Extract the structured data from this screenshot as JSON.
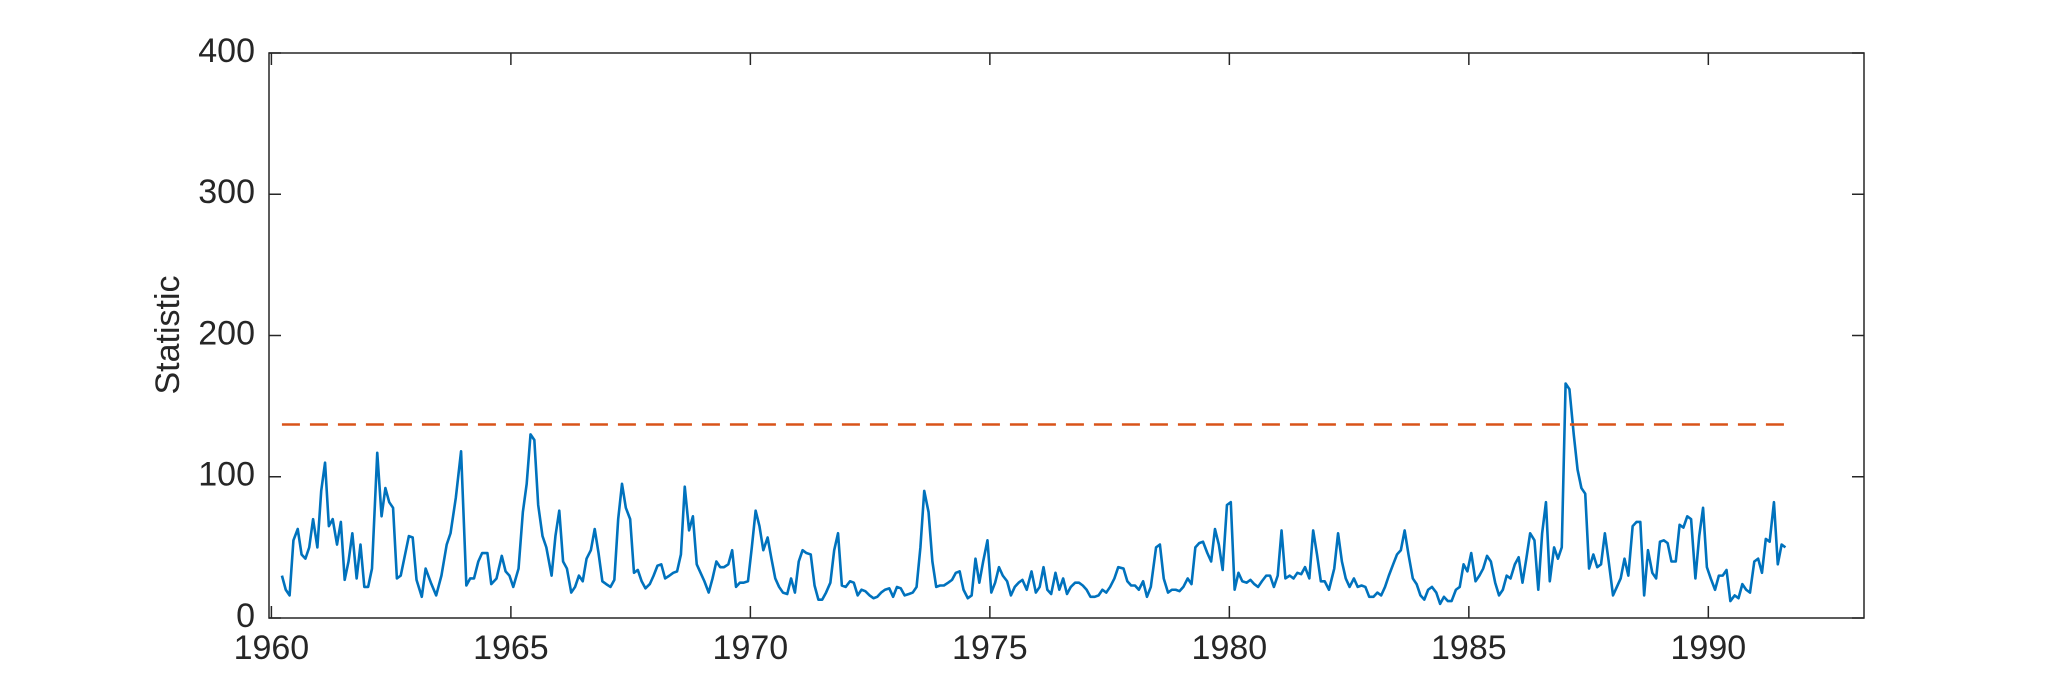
{
  "chart_data": {
    "type": "line",
    "ylabel": "Statistic",
    "xlim": [
      1959.95,
      1993.25
    ],
    "xticks": [
      1960,
      1965,
      1970,
      1975,
      1980,
      1985,
      1990
    ],
    "ylim": [
      0,
      400
    ],
    "yticks": [
      0,
      100,
      200,
      300,
      400
    ],
    "grid": false,
    "series": [
      {
        "color": "#0072bd",
        "x": [
          1960.22,
          1960.3,
          1960.38,
          1960.46,
          1960.55,
          1960.63,
          1960.71,
          1960.79,
          1960.87,
          1960.96,
          1961.04,
          1961.12,
          1961.2,
          1961.28,
          1961.37,
          1961.45,
          1961.53,
          1961.61,
          1961.69,
          1961.78,
          1961.86,
          1961.94,
          1962.02,
          1962.1,
          1962.21,
          1962.3,
          1962.38,
          1962.46,
          1962.54,
          1962.62,
          1962.7,
          1962.87,
          1962.95,
          1963.03,
          1963.14,
          1963.22,
          1963.33,
          1963.44,
          1963.55,
          1963.66,
          1963.74,
          1963.85,
          1963.96,
          1964.07,
          1964.15,
          1964.23,
          1964.32,
          1964.4,
          1964.51,
          1964.59,
          1964.7,
          1964.81,
          1964.89,
          1964.97,
          1965.05,
          1965.16,
          1965.25,
          1965.33,
          1965.41,
          1965.49,
          1965.57,
          1965.66,
          1965.74,
          1965.85,
          1965.93,
          1966.01,
          1966.09,
          1966.17,
          1966.26,
          1966.34,
          1966.42,
          1966.5,
          1966.58,
          1966.67,
          1966.75,
          1966.83,
          1966.91,
          1966.99,
          1967.08,
          1967.16,
          1967.24,
          1967.32,
          1967.4,
          1967.49,
          1967.57,
          1967.65,
          1967.73,
          1967.81,
          1967.9,
          1967.98,
          1968.06,
          1968.14,
          1968.22,
          1968.31,
          1968.39,
          1968.47,
          1968.55,
          1968.63,
          1968.72,
          1968.8,
          1968.88,
          1968.96,
          1969.04,
          1969.13,
          1969.21,
          1969.29,
          1969.37,
          1969.45,
          1969.54,
          1969.62,
          1969.7,
          1969.78,
          1969.86,
          1969.95,
          1970.03,
          1970.11,
          1970.19,
          1970.27,
          1970.36,
          1970.44,
          1970.52,
          1970.6,
          1970.68,
          1970.77,
          1970.85,
          1970.93,
          1971.01,
          1971.09,
          1971.17,
          1971.26,
          1971.34,
          1971.42,
          1971.5,
          1971.58,
          1971.67,
          1971.75,
          1971.83,
          1971.91,
          1971.99,
          1972.08,
          1972.16,
          1972.24,
          1972.32,
          1972.4,
          1972.49,
          1972.57,
          1972.65,
          1972.73,
          1972.81,
          1972.9,
          1972.98,
          1973.06,
          1973.14,
          1973.22,
          1973.31,
          1973.39,
          1973.47,
          1973.55,
          1973.63,
          1973.72,
          1973.8,
          1973.88,
          1973.96,
          1974.04,
          1974.13,
          1974.21,
          1974.29,
          1974.37,
          1974.45,
          1974.54,
          1974.62,
          1974.7,
          1974.78,
          1974.86,
          1974.95,
          1975.03,
          1975.11,
          1975.19,
          1975.27,
          1975.36,
          1975.44,
          1975.52,
          1975.6,
          1975.68,
          1975.77,
          1975.87,
          1975.96,
          1976.04,
          1976.12,
          1976.2,
          1976.28,
          1976.37,
          1976.45,
          1976.53,
          1976.61,
          1976.69,
          1976.78,
          1976.86,
          1976.94,
          1977.02,
          1977.1,
          1977.19,
          1977.27,
          1977.35,
          1977.43,
          1977.51,
          1977.6,
          1977.68,
          1977.79,
          1977.87,
          1977.95,
          1978.03,
          1978.11,
          1978.2,
          1978.28,
          1978.36,
          1978.47,
          1978.55,
          1978.63,
          1978.72,
          1978.8,
          1978.88,
          1978.96,
          1979.04,
          1979.13,
          1979.21,
          1979.29,
          1979.37,
          1979.45,
          1979.54,
          1979.62,
          1979.7,
          1979.78,
          1979.86,
          1979.95,
          1980.03,
          1980.11,
          1980.19,
          1980.27,
          1980.36,
          1980.44,
          1980.52,
          1980.6,
          1980.68,
          1980.77,
          1980.85,
          1980.93,
          1981.01,
          1981.09,
          1981.17,
          1981.26,
          1981.34,
          1981.42,
          1981.5,
          1981.58,
          1981.67,
          1981.75,
          1981.83,
          1981.91,
          1981.99,
          1982.08,
          1982.19,
          1982.27,
          1982.35,
          1982.43,
          1982.51,
          1982.6,
          1982.68,
          1982.76,
          1982.84,
          1982.92,
          1983.01,
          1983.09,
          1983.17,
          1983.25,
          1983.33,
          1983.42,
          1983.5,
          1983.58,
          1983.66,
          1983.74,
          1983.83,
          1983.91,
          1983.99,
          1984.07,
          1984.15,
          1984.23,
          1984.32,
          1984.4,
          1984.48,
          1984.56,
          1984.64,
          1984.73,
          1984.81,
          1984.89,
          1984.97,
          1985.05,
          1985.14,
          1985.22,
          1985.3,
          1985.38,
          1985.46,
          1985.55,
          1985.63,
          1985.71,
          1985.79,
          1985.87,
          1985.96,
          1986.04,
          1986.12,
          1986.2,
          1986.28,
          1986.37,
          1986.45,
          1986.53,
          1986.61,
          1986.69,
          1986.78,
          1986.86,
          1986.94,
          1987.02,
          1987.1,
          1987.19,
          1987.27,
          1987.35,
          1987.43,
          1987.51,
          1987.6,
          1987.68,
          1987.76,
          1987.84,
          1987.92,
          1988.01,
          1988.09,
          1988.17,
          1988.25,
          1988.33,
          1988.42,
          1988.5,
          1988.58,
          1988.66,
          1988.74,
          1988.83,
          1988.91,
          1988.99,
          1989.07,
          1989.15,
          1989.23,
          1989.32,
          1989.4,
          1989.48,
          1989.56,
          1989.64,
          1989.73,
          1989.81,
          1989.89,
          1989.97,
          1990.05,
          1990.14,
          1990.22,
          1990.3,
          1990.38,
          1990.46,
          1990.55,
          1990.63,
          1990.71,
          1990.79,
          1990.87,
          1990.96,
          1991.04,
          1991.12,
          1991.2,
          1991.28,
          1991.37,
          1991.45,
          1991.53,
          1991.61
        ],
        "values": [
          30,
          20,
          16,
          55,
          63,
          45,
          42,
          50,
          70,
          50,
          90,
          110,
          65,
          70,
          52,
          68,
          27,
          40,
          60,
          28,
          52,
          22,
          22,
          35,
          117,
          72,
          92,
          82,
          78,
          28,
          30,
          58,
          57,
          27,
          15,
          35,
          25,
          16,
          30,
          52,
          60,
          85,
          118,
          23,
          28,
          28,
          40,
          46,
          46,
          24,
          28,
          44,
          33,
          30,
          22,
          35,
          75,
          95,
          130,
          126,
          80,
          58,
          50,
          30,
          58,
          76,
          40,
          35,
          18,
          22,
          30,
          26,
          42,
          48,
          63,
          46,
          26,
          24,
          22,
          27,
          70,
          95,
          78,
          70,
          32,
          34,
          26,
          21,
          24,
          30,
          37,
          38,
          28,
          30,
          32,
          33,
          45,
          93,
          62,
          72,
          38,
          32,
          26,
          18,
          28,
          40,
          36,
          36,
          38,
          48,
          22,
          25,
          25,
          26,
          50,
          76,
          65,
          48,
          57,
          42,
          28,
          22,
          18,
          17,
          28,
          18,
          40,
          48,
          46,
          45,
          23,
          13,
          13,
          18,
          25,
          48,
          60,
          23,
          22,
          26,
          25,
          16,
          20,
          19,
          16,
          14,
          15,
          18,
          20,
          21,
          15,
          22,
          21,
          16,
          17,
          18,
          22,
          50,
          90,
          75,
          40,
          22,
          23,
          23,
          25,
          27,
          32,
          33,
          20,
          14,
          16,
          42,
          25,
          40,
          55,
          18,
          25,
          36,
          30,
          26,
          16,
          22,
          25,
          27,
          20,
          33,
          18,
          22,
          36,
          20,
          17,
          32,
          20,
          28,
          17,
          22,
          25,
          25,
          23,
          20,
          15,
          15,
          16,
          20,
          18,
          22,
          28,
          36,
          35,
          26,
          23,
          23,
          20,
          26,
          15,
          22,
          50,
          52,
          28,
          18,
          20,
          20,
          19,
          22,
          28,
          24,
          50,
          53,
          54,
          46,
          40,
          63,
          52,
          34,
          80,
          82,
          20,
          32,
          26,
          25,
          27,
          24,
          22,
          26,
          30,
          30,
          22,
          30,
          62,
          28,
          30,
          28,
          32,
          31,
          36,
          28,
          62,
          45,
          26,
          26,
          20,
          35,
          60,
          40,
          28,
          22,
          28,
          22,
          23,
          22,
          15,
          15,
          18,
          16,
          22,
          30,
          38,
          45,
          48,
          62,
          45,
          28,
          24,
          16,
          13,
          20,
          22,
          18,
          10,
          15,
          12,
          12,
          20,
          22,
          38,
          33,
          46,
          26,
          30,
          35,
          44,
          40,
          25,
          16,
          20,
          30,
          28,
          38,
          43,
          25,
          42,
          60,
          55,
          20,
          60,
          82,
          26,
          50,
          42,
          50,
          166,
          162,
          130,
          105,
          92,
          88,
          35,
          45,
          36,
          38,
          60,
          40,
          16,
          22,
          28,
          42,
          30,
          65,
          68,
          68,
          16,
          48,
          32,
          28,
          54,
          55,
          53,
          40,
          40,
          66,
          64,
          72,
          70,
          28,
          58,
          78,
          36,
          28,
          20,
          30,
          30,
          34,
          12,
          16,
          14,
          24,
          20,
          18,
          40,
          42,
          32,
          56,
          54,
          82,
          38,
          52,
          50
        ]
      },
      {
        "color": "#d95319",
        "dashed": true,
        "x": [
          1960.22,
          1991.61
        ],
        "values": [
          137,
          137
        ]
      }
    ]
  }
}
